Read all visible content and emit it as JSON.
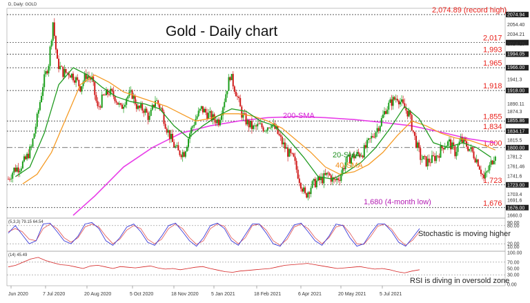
{
  "chart_data": {
    "type": "candlestick",
    "symbol_label": "D, Daily: GOLD",
    "title": "Gold - Daily chart",
    "price_axis_ticks": [
      "2074.94",
      "2054.40",
      "2034.21",
      "2014.15",
      "1994.05",
      "1966.00",
      "1941.3",
      "1918.00",
      "1890.11",
      "1874.3",
      "1855.86",
      "1834.17",
      "1815.5",
      "1800.00",
      "1781.2",
      "1761.46",
      "1741.6",
      "1723.00",
      "1703.4",
      "1691.6",
      "1676.00",
      "1660.0"
    ],
    "date_labels": [
      "Jun 2020",
      "7 Jul 2020",
      "20 Aug 2020",
      "5 Oct 2020",
      "18 Nov 2020",
      "5 Jan 2021",
      "18 Feb 2021",
      "6 Apr 2021",
      "20 May 2021",
      "5 Jul 2021"
    ],
    "levels": [
      {
        "value": 2074.89,
        "label": "2,074.89 (record high)",
        "style": "dotted"
      },
      {
        "value": 2017,
        "label": "2,017",
        "style": "dotted"
      },
      {
        "value": 1993,
        "label": "1,993",
        "style": "dotted"
      },
      {
        "value": 1965,
        "label": "1,965",
        "style": "dotted"
      },
      {
        "value": 1918,
        "label": "1,918",
        "style": "dotted"
      },
      {
        "value": 1855,
        "label": "1,855",
        "style": "dotted"
      },
      {
        "value": 1834,
        "label": "1,834",
        "style": "dotted"
      },
      {
        "value": 1800,
        "label": "1,800",
        "style": "dashdot"
      },
      {
        "value": 1723,
        "label": "1,723",
        "style": "dotted"
      },
      {
        "value": 1676,
        "label": "1,676",
        "style": "dotted"
      }
    ],
    "annotations": {
      "sma200": "200-SMA",
      "sma20": "20-SMA",
      "sma40": "40-SMA",
      "low": "1,680 (4-month low)",
      "stoch": "Stochastic is moving higher",
      "rsi": "RSI is diving in oversold zone"
    },
    "ylim": [
      1660,
      2085
    ],
    "close_path": [
      [
        0,
        1735
      ],
      [
        4,
        1755
      ],
      [
        8,
        1760
      ],
      [
        12,
        1775
      ],
      [
        16,
        1800
      ],
      [
        20,
        1860
      ],
      [
        24,
        1930
      ],
      [
        28,
        1975
      ],
      [
        31,
        2060
      ],
      [
        34,
        1975
      ],
      [
        38,
        1955
      ],
      [
        42,
        1955
      ],
      [
        46,
        1945
      ],
      [
        50,
        1925
      ],
      [
        54,
        1950
      ],
      [
        58,
        1940
      ],
      [
        62,
        1880
      ],
      [
        66,
        1905
      ],
      [
        70,
        1915
      ],
      [
        74,
        1905
      ],
      [
        78,
        1880
      ],
      [
        82,
        1905
      ],
      [
        86,
        1910
      ],
      [
        90,
        1880
      ],
      [
        94,
        1880
      ],
      [
        98,
        1860
      ],
      [
        102,
        1900
      ],
      [
        106,
        1880
      ],
      [
        110,
        1840
      ],
      [
        114,
        1810
      ],
      [
        118,
        1790
      ],
      [
        122,
        1790
      ],
      [
        126,
        1830
      ],
      [
        130,
        1860
      ],
      [
        134,
        1880
      ],
      [
        138,
        1870
      ],
      [
        142,
        1860
      ],
      [
        146,
        1855
      ],
      [
        150,
        1900
      ],
      [
        154,
        1950
      ],
      [
        158,
        1915
      ],
      [
        162,
        1870
      ],
      [
        166,
        1850
      ],
      [
        170,
        1840
      ],
      [
        174,
        1845
      ],
      [
        178,
        1840
      ],
      [
        182,
        1850
      ],
      [
        186,
        1835
      ],
      [
        190,
        1810
      ],
      [
        194,
        1790
      ],
      [
        198,
        1775
      ],
      [
        202,
        1735
      ],
      [
        206,
        1700
      ],
      [
        210,
        1720
      ],
      [
        214,
        1730
      ],
      [
        218,
        1735
      ],
      [
        222,
        1745
      ],
      [
        226,
        1730
      ],
      [
        230,
        1740
      ],
      [
        234,
        1770
      ],
      [
        238,
        1780
      ],
      [
        242,
        1785
      ],
      [
        246,
        1790
      ],
      [
        250,
        1810
      ],
      [
        254,
        1830
      ],
      [
        258,
        1850
      ],
      [
        262,
        1880
      ],
      [
        266,
        1895
      ],
      [
        270,
        1905
      ],
      [
        274,
        1885
      ],
      [
        278,
        1870
      ],
      [
        282,
        1820
      ],
      [
        286,
        1780
      ],
      [
        290,
        1770
      ],
      [
        294,
        1775
      ],
      [
        298,
        1785
      ],
      [
        302,
        1805
      ],
      [
        306,
        1810
      ],
      [
        310,
        1790
      ],
      [
        314,
        1815
      ],
      [
        318,
        1805
      ],
      [
        322,
        1790
      ],
      [
        326,
        1770
      ],
      [
        330,
        1735
      ],
      [
        334,
        1760
      ],
      [
        338,
        1790
      ]
    ],
    "sma20_path": [
      [
        5,
        1740
      ],
      [
        15,
        1760
      ],
      [
        25,
        1830
      ],
      [
        35,
        1930
      ],
      [
        45,
        1965
      ],
      [
        55,
        1950
      ],
      [
        65,
        1925
      ],
      [
        75,
        1905
      ],
      [
        85,
        1895
      ],
      [
        95,
        1890
      ],
      [
        105,
        1880
      ],
      [
        115,
        1845
      ],
      [
        125,
        1820
      ],
      [
        135,
        1845
      ],
      [
        145,
        1865
      ],
      [
        155,
        1880
      ],
      [
        165,
        1875
      ],
      [
        175,
        1855
      ],
      [
        185,
        1845
      ],
      [
        195,
        1815
      ],
      [
        205,
        1780
      ],
      [
        215,
        1740
      ],
      [
        225,
        1735
      ],
      [
        235,
        1750
      ],
      [
        245,
        1770
      ],
      [
        255,
        1800
      ],
      [
        265,
        1840
      ],
      [
        275,
        1885
      ],
      [
        285,
        1860
      ],
      [
        295,
        1810
      ],
      [
        305,
        1800
      ],
      [
        315,
        1810
      ],
      [
        325,
        1800
      ],
      [
        335,
        1780
      ]
    ],
    "sma40_path": [
      [
        10,
        1725
      ],
      [
        20,
        1745
      ],
      [
        30,
        1790
      ],
      [
        40,
        1860
      ],
      [
        50,
        1930
      ],
      [
        60,
        1950
      ],
      [
        70,
        1935
      ],
      [
        80,
        1915
      ],
      [
        90,
        1905
      ],
      [
        100,
        1895
      ],
      [
        110,
        1885
      ],
      [
        120,
        1870
      ],
      [
        130,
        1855
      ],
      [
        140,
        1860
      ],
      [
        150,
        1870
      ],
      [
        160,
        1870
      ],
      [
        170,
        1865
      ],
      [
        180,
        1855
      ],
      [
        190,
        1840
      ],
      [
        200,
        1815
      ],
      [
        210,
        1790
      ],
      [
        220,
        1760
      ],
      [
        230,
        1745
      ],
      [
        240,
        1750
      ],
      [
        250,
        1765
      ],
      [
        260,
        1790
      ],
      [
        270,
        1825
      ],
      [
        280,
        1855
      ],
      [
        290,
        1845
      ],
      [
        300,
        1830
      ],
      [
        310,
        1820
      ],
      [
        320,
        1815
      ],
      [
        330,
        1805
      ],
      [
        338,
        1795
      ]
    ],
    "sma200_path": [
      [
        45,
        1660
      ],
      [
        60,
        1700
      ],
      [
        80,
        1760
      ],
      [
        100,
        1800
      ],
      [
        120,
        1830
      ],
      [
        140,
        1845
      ],
      [
        160,
        1855
      ],
      [
        180,
        1862
      ],
      [
        200,
        1864
      ],
      [
        220,
        1862
      ],
      [
        240,
        1858
      ],
      [
        260,
        1852
      ],
      [
        280,
        1845
      ],
      [
        300,
        1832
      ],
      [
        320,
        1818
      ],
      [
        338,
        1810
      ]
    ],
    "stochastic": {
      "label": "(5,3,3) 79.15 64.54",
      "ticks": [
        "90.00",
        "80.00",
        "20.00",
        "10.00"
      ],
      "k": [
        55,
        80,
        50,
        20,
        30,
        85,
        88,
        60,
        30,
        20,
        45,
        85,
        90,
        70,
        30,
        15,
        40,
        75,
        85,
        60,
        25,
        15,
        45,
        80,
        88,
        60,
        30,
        12,
        40,
        80,
        88,
        70,
        30,
        15,
        50,
        85,
        85,
        55,
        20,
        12,
        45,
        82,
        88,
        60,
        30,
        15,
        45,
        85,
        80,
        40,
        12,
        20,
        55,
        85,
        85,
        60,
        25,
        12,
        40,
        70
      ],
      "d": [
        60,
        70,
        60,
        35,
        30,
        70,
        85,
        70,
        40,
        25,
        40,
        75,
        85,
        75,
        45,
        20,
        35,
        65,
        80,
        70,
        35,
        20,
        35,
        70,
        85,
        70,
        40,
        18,
        30,
        70,
        85,
        78,
        40,
        20,
        40,
        80,
        85,
        65,
        30,
        15,
        35,
        75,
        85,
        70,
        40,
        20,
        40,
        75,
        82,
        55,
        20,
        18,
        45,
        78,
        85,
        68,
        35,
        15,
        32,
        60
      ]
    },
    "rsi": {
      "label": "(14) 45.49",
      "ticks": [
        "100.00",
        "70.00",
        "50.00",
        "30.00",
        "0.00"
      ],
      "values": [
        55,
        60,
        70,
        80,
        85,
        75,
        68,
        62,
        60,
        55,
        50,
        58,
        60,
        55,
        50,
        56,
        54,
        52,
        55,
        58,
        52,
        48,
        50,
        46,
        50,
        54,
        56,
        50,
        45,
        40,
        38,
        42,
        44,
        46,
        48,
        50,
        55,
        60,
        62,
        64,
        66,
        62,
        58,
        54,
        50,
        52,
        54,
        56,
        52,
        48,
        50,
        46,
        40,
        36,
        42,
        46
      ]
    }
  }
}
